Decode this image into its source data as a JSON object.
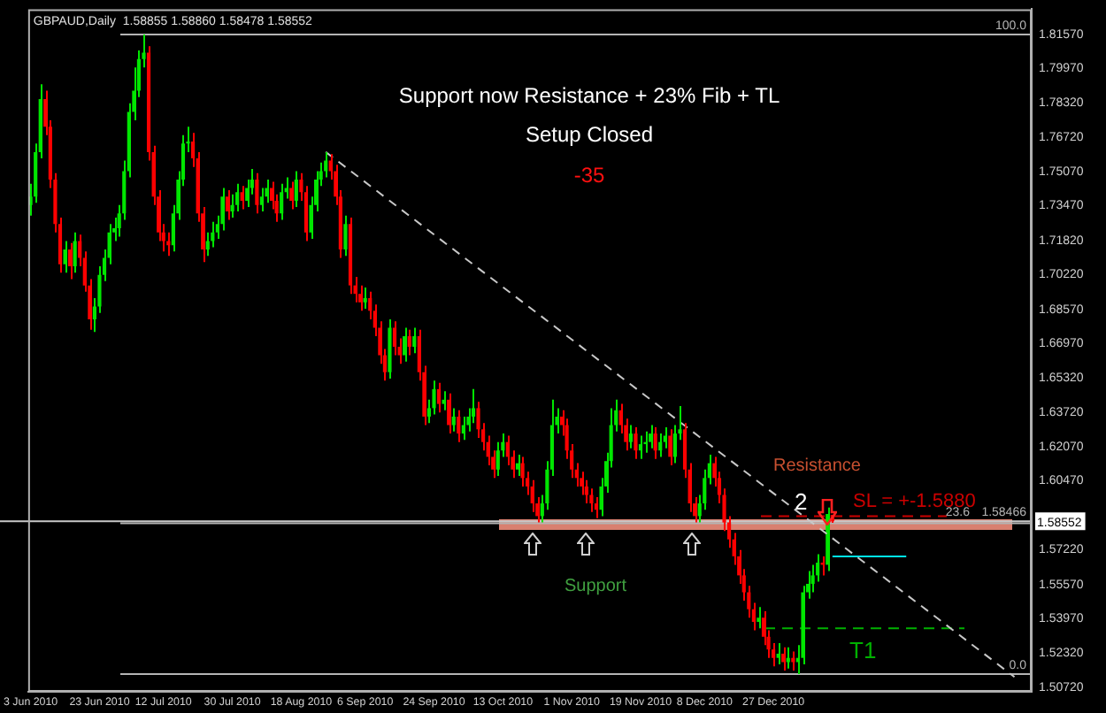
{
  "chart_data": {
    "type": "candlestick",
    "title": "GBPAUD,Daily  1.58855 1.58860 1.58478 1.58552",
    "categories": [
      "3 Jun 2010",
      null,
      null,
      null,
      null,
      null,
      null,
      null,
      null,
      null,
      null,
      null,
      null,
      null,
      "23 Jun 2010",
      null,
      null,
      null,
      null,
      null,
      null,
      null,
      null,
      null,
      null,
      null,
      null,
      "12 Jul 2010",
      null,
      null,
      null,
      null,
      null,
      null,
      null,
      null,
      null,
      null,
      null,
      null,
      null,
      "30 Jul 2010",
      null,
      null,
      null,
      null,
      null,
      null,
      null,
      null,
      null,
      null,
      null,
      null,
      null,
      "18 Aug 2010",
      null,
      null,
      null,
      null,
      null,
      null,
      null,
      null,
      null,
      null,
      null,
      null,
      "6 Sep 2010",
      null,
      null,
      null,
      null,
      null,
      null,
      null,
      null,
      null,
      null,
      null,
      null,
      null,
      "24 Sep 2010",
      null,
      null,
      null,
      null,
      null,
      null,
      null,
      null,
      null,
      null,
      null,
      null,
      null,
      "13 Oct 2010",
      null,
      null,
      null,
      null,
      null,
      null,
      null,
      null,
      null,
      null,
      null,
      null,
      null,
      "1 Nov 2010",
      null,
      null,
      null,
      null,
      null,
      null,
      null,
      null,
      null,
      null,
      null,
      null,
      null,
      "19 Nov 2010",
      null,
      null,
      null,
      null,
      null,
      null,
      null,
      null,
      null,
      null,
      null,
      null,
      "8 Dec 2010",
      null,
      null,
      null,
      null,
      null,
      null,
      null,
      null,
      null,
      null,
      null,
      null,
      null,
      "27 Dec 2010",
      null,
      null,
      null,
      null,
      null,
      null,
      null,
      null,
      null,
      null,
      null,
      null,
      null,
      null,
      null,
      null,
      null,
      null,
      null,
      null,
      null,
      null,
      null,
      null,
      null,
      null,
      null,
      null,
      null,
      null,
      null,
      null,
      null,
      null,
      null,
      null,
      null,
      null,
      null,
      null,
      null,
      null,
      null,
      null,
      null,
      null,
      null,
      null,
      null,
      null,
      null,
      null
    ],
    "ohlc": [
      [
        1.735,
        1.745,
        1.73,
        1.739
      ],
      [
        1.739,
        1.764,
        1.736,
        1.76
      ],
      [
        1.76,
        1.792,
        1.757,
        1.785
      ],
      [
        1.785,
        1.789,
        1.768,
        1.772
      ],
      [
        1.772,
        1.775,
        1.743,
        1.747
      ],
      [
        1.747,
        1.75,
        1.722,
        1.726
      ],
      [
        1.726,
        1.729,
        1.703,
        1.707
      ],
      [
        1.707,
        1.718,
        1.703,
        1.714
      ],
      [
        1.714,
        1.717,
        1.7,
        1.706
      ],
      [
        1.706,
        1.722,
        1.703,
        1.718
      ],
      [
        1.718,
        1.721,
        1.706,
        1.71
      ],
      [
        1.71,
        1.713,
        1.694,
        1.697
      ],
      [
        1.697,
        1.7,
        1.676,
        1.681
      ],
      [
        1.681,
        1.691,
        1.675,
        1.687
      ],
      [
        1.687,
        1.706,
        1.684,
        1.702
      ],
      [
        1.702,
        1.714,
        1.699,
        1.71
      ],
      [
        1.71,
        1.726,
        1.707,
        1.722
      ],
      [
        1.722,
        1.729,
        1.718,
        1.724
      ],
      [
        1.724,
        1.735,
        1.72,
        1.731
      ],
      [
        1.731,
        1.756,
        1.728,
        1.751
      ],
      [
        1.751,
        1.783,
        1.748,
        1.779
      ],
      [
        1.779,
        1.8,
        1.775,
        1.789
      ],
      [
        1.789,
        1.808,
        1.786,
        1.804
      ],
      [
        1.804,
        1.8155,
        1.8,
        1.807
      ],
      [
        1.807,
        1.81,
        1.756,
        1.76
      ],
      [
        1.76,
        1.763,
        1.735,
        1.739
      ],
      [
        1.739,
        1.742,
        1.718,
        1.722
      ],
      [
        1.722,
        1.726,
        1.713,
        1.718
      ],
      [
        1.718,
        1.722,
        1.711,
        1.716
      ],
      [
        1.716,
        1.735,
        1.713,
        1.731
      ],
      [
        1.731,
        1.751,
        1.728,
        1.747
      ],
      [
        1.747,
        1.768,
        1.744,
        1.764
      ],
      [
        1.764,
        1.772,
        1.76,
        1.765
      ],
      [
        1.765,
        1.769,
        1.753,
        1.757
      ],
      [
        1.757,
        1.76,
        1.727,
        1.731
      ],
      [
        1.731,
        1.734,
        1.708,
        1.714
      ],
      [
        1.714,
        1.722,
        1.711,
        1.718
      ],
      [
        1.718,
        1.727,
        1.715,
        1.722
      ],
      [
        1.722,
        1.73,
        1.719,
        1.726
      ],
      [
        1.726,
        1.743,
        1.723,
        1.739
      ],
      [
        1.739,
        1.742,
        1.728,
        1.732
      ],
      [
        1.732,
        1.74,
        1.729,
        1.735
      ],
      [
        1.735,
        1.745,
        1.732,
        1.741
      ],
      [
        1.741,
        1.744,
        1.733,
        1.737
      ],
      [
        1.737,
        1.747,
        1.734,
        1.743
      ],
      [
        1.743,
        1.752,
        1.74,
        1.747
      ],
      [
        1.747,
        1.75,
        1.731,
        1.735
      ],
      [
        1.735,
        1.743,
        1.732,
        1.739
      ],
      [
        1.739,
        1.747,
        1.736,
        1.743
      ],
      [
        1.743,
        1.746,
        1.733,
        1.737
      ],
      [
        1.737,
        1.74,
        1.727,
        1.731
      ],
      [
        1.731,
        1.745,
        1.728,
        1.741
      ],
      [
        1.741,
        1.748,
        1.738,
        1.743
      ],
      [
        1.743,
        1.746,
        1.733,
        1.737
      ],
      [
        1.737,
        1.751,
        1.734,
        1.747
      ],
      [
        1.747,
        1.75,
        1.737,
        1.741
      ],
      [
        1.741,
        1.744,
        1.718,
        1.722
      ],
      [
        1.722,
        1.739,
        1.719,
        1.735
      ],
      [
        1.735,
        1.751,
        1.732,
        1.747
      ],
      [
        1.747,
        1.755,
        1.744,
        1.751
      ],
      [
        1.751,
        1.76,
        1.748,
        1.756
      ],
      [
        1.756,
        1.759,
        1.747,
        1.751
      ],
      [
        1.751,
        1.754,
        1.735,
        1.739
      ],
      [
        1.739,
        1.742,
        1.71,
        1.714
      ],
      [
        1.714,
        1.73,
        1.711,
        1.726
      ],
      [
        1.726,
        1.729,
        1.693,
        1.697
      ],
      [
        1.697,
        1.701,
        1.689,
        1.693
      ],
      [
        1.693,
        1.697,
        1.685,
        1.689
      ],
      [
        1.689,
        1.696,
        1.686,
        1.691
      ],
      [
        1.691,
        1.694,
        1.681,
        1.685
      ],
      [
        1.685,
        1.688,
        1.673,
        1.677
      ],
      [
        1.677,
        1.68,
        1.66,
        1.664
      ],
      [
        1.664,
        1.667,
        1.652,
        1.656
      ],
      [
        1.656,
        1.681,
        1.653,
        1.677
      ],
      [
        1.677,
        1.68,
        1.664,
        1.668
      ],
      [
        1.668,
        1.672,
        1.66,
        1.664
      ],
      [
        1.664,
        1.677,
        1.661,
        1.673
      ],
      [
        1.673,
        1.676,
        1.664,
        1.668
      ],
      [
        1.668,
        1.677,
        1.665,
        1.673
      ],
      [
        1.673,
        1.676,
        1.652,
        1.656
      ],
      [
        1.656,
        1.659,
        1.631,
        1.635
      ],
      [
        1.635,
        1.643,
        1.632,
        1.639
      ],
      [
        1.639,
        1.652,
        1.636,
        1.648
      ],
      [
        1.648,
        1.651,
        1.637,
        1.641
      ],
      [
        1.641,
        1.647,
        1.638,
        1.643
      ],
      [
        1.643,
        1.646,
        1.627,
        1.631
      ],
      [
        1.631,
        1.639,
        1.628,
        1.635
      ],
      [
        1.635,
        1.638,
        1.623,
        1.627
      ],
      [
        1.627,
        1.635,
        1.624,
        1.631
      ],
      [
        1.631,
        1.639,
        1.628,
        1.635
      ],
      [
        1.635,
        1.648,
        1.632,
        1.639
      ],
      [
        1.639,
        1.642,
        1.625,
        1.629
      ],
      [
        1.629,
        1.632,
        1.619,
        1.623
      ],
      [
        1.623,
        1.626,
        1.612,
        1.616
      ],
      [
        1.616,
        1.619,
        1.606,
        1.61
      ],
      [
        1.61,
        1.623,
        1.607,
        1.619
      ],
      [
        1.619,
        1.627,
        1.616,
        1.623
      ],
      [
        1.623,
        1.626,
        1.612,
        1.616
      ],
      [
        1.616,
        1.619,
        1.606,
        1.61
      ],
      [
        1.61,
        1.617,
        1.607,
        1.613
      ],
      [
        1.613,
        1.616,
        1.602,
        1.606
      ],
      [
        1.606,
        1.609,
        1.598,
        1.602
      ],
      [
        1.602,
        1.605,
        1.59,
        1.594
      ],
      [
        1.594,
        1.597,
        1.585,
        1.588
      ],
      [
        1.588,
        1.598,
        1.585,
        1.594
      ],
      [
        1.594,
        1.614,
        1.591,
        1.61
      ],
      [
        1.61,
        1.643,
        1.607,
        1.631
      ],
      [
        1.631,
        1.639,
        1.627,
        1.635
      ],
      [
        1.635,
        1.638,
        1.626,
        1.631
      ],
      [
        1.631,
        1.634,
        1.615,
        1.619
      ],
      [
        1.619,
        1.622,
        1.606,
        1.61
      ],
      [
        1.61,
        1.613,
        1.602,
        1.606
      ],
      [
        1.606,
        1.609,
        1.598,
        1.602
      ],
      [
        1.602,
        1.605,
        1.594,
        1.598
      ],
      [
        1.598,
        1.601,
        1.59,
        1.594
      ],
      [
        1.594,
        1.597,
        1.587,
        1.591
      ],
      [
        1.591,
        1.606,
        1.588,
        1.602
      ],
      [
        1.602,
        1.618,
        1.599,
        1.614
      ],
      [
        1.614,
        1.639,
        1.611,
        1.631
      ],
      [
        1.631,
        1.643,
        1.628,
        1.638
      ],
      [
        1.638,
        1.641,
        1.627,
        1.631
      ],
      [
        1.631,
        1.634,
        1.619,
        1.623
      ],
      [
        1.623,
        1.631,
        1.62,
        1.627
      ],
      [
        1.627,
        1.63,
        1.615,
        1.619
      ],
      [
        1.619,
        1.626,
        1.615,
        1.622
      ],
      [
        1.622,
        1.628,
        1.618,
        1.623
      ],
      [
        1.623,
        1.631,
        1.62,
        1.627
      ],
      [
        1.627,
        1.63,
        1.615,
        1.619
      ],
      [
        1.619,
        1.627,
        1.616,
        1.623
      ],
      [
        1.623,
        1.63,
        1.62,
        1.626
      ],
      [
        1.626,
        1.629,
        1.612,
        1.616
      ],
      [
        1.616,
        1.631,
        1.613,
        1.627
      ],
      [
        1.627,
        1.64,
        1.624,
        1.629
      ],
      [
        1.629,
        1.632,
        1.606,
        1.61
      ],
      [
        1.61,
        1.613,
        1.59,
        1.594
      ],
      [
        1.594,
        1.597,
        1.585,
        1.588
      ],
      [
        1.588,
        1.598,
        1.585,
        1.594
      ],
      [
        1.594,
        1.61,
        1.591,
        1.606
      ],
      [
        1.606,
        1.617,
        1.603,
        1.613
      ],
      [
        1.613,
        1.616,
        1.602,
        1.606
      ],
      [
        1.606,
        1.609,
        1.594,
        1.598
      ],
      [
        1.598,
        1.601,
        1.581,
        1.585
      ],
      [
        1.585,
        1.588,
        1.573,
        1.577
      ],
      [
        1.577,
        1.58,
        1.565,
        1.569
      ],
      [
        1.569,
        1.572,
        1.556,
        1.56
      ],
      [
        1.56,
        1.563,
        1.548,
        1.552
      ],
      [
        1.552,
        1.555,
        1.54,
        1.544
      ],
      [
        1.544,
        1.547,
        1.534,
        1.538
      ],
      [
        1.538,
        1.545,
        1.535,
        1.54
      ],
      [
        1.54,
        1.543,
        1.527,
        1.531
      ],
      [
        1.531,
        1.534,
        1.521,
        1.525
      ],
      [
        1.525,
        1.528,
        1.517,
        1.521
      ],
      [
        1.521,
        1.528,
        1.518,
        1.523
      ],
      [
        1.523,
        1.526,
        1.515,
        1.519
      ],
      [
        1.519,
        1.526,
        1.516,
        1.521
      ],
      [
        1.521,
        1.524,
        1.515,
        1.519
      ],
      [
        1.519,
        1.527,
        1.5134,
        1.521
      ],
      [
        1.521,
        1.555,
        1.518,
        1.552
      ],
      [
        1.552,
        1.562,
        1.549,
        1.556
      ],
      [
        1.556,
        1.565,
        1.552,
        1.56
      ],
      [
        1.56,
        1.57,
        1.557,
        1.566
      ],
      [
        1.566,
        1.569,
        1.56,
        1.565
      ],
      [
        1.565,
        1.592,
        1.562,
        1.589
      ],
      [
        1.58855,
        1.5886,
        1.58478,
        1.58552
      ],
      null,
      null,
      null,
      null,
      null,
      null,
      null,
      null,
      null,
      null,
      null,
      null,
      null,
      null,
      null,
      null,
      null,
      null,
      null,
      null,
      null,
      null,
      null,
      null,
      null,
      null,
      null,
      null,
      null,
      null,
      null,
      null,
      null,
      null,
      null,
      null,
      null,
      null,
      null,
      null
    ],
    "series": [
      {
        "type": "line",
        "color": "#c8c8c8",
        "line_style": "dashed",
        "values": [
          null,
          null,
          null,
          null,
          null,
          null,
          null,
          null,
          null,
          null,
          null,
          null,
          null,
          null,
          null,
          null,
          null,
          null,
          null,
          null,
          null,
          null,
          null,
          null,
          null,
          null,
          null,
          null,
          null,
          null,
          null,
          null,
          null,
          null,
          null,
          null,
          null,
          null,
          null,
          null,
          null,
          null,
          null,
          null,
          null,
          null,
          null,
          null,
          null,
          null,
          null,
          null,
          null,
          null,
          null,
          null,
          null,
          null,
          null,
          null,
          1.76,
          null,
          null,
          null,
          null,
          null,
          null,
          null,
          null,
          null,
          null,
          null,
          null,
          null,
          null,
          null,
          null,
          null,
          null,
          null,
          null,
          null,
          null,
          null,
          null,
          null,
          null,
          null,
          null,
          null,
          null,
          null,
          null,
          null,
          null,
          null,
          null,
          null,
          null,
          null,
          null,
          null,
          null,
          null,
          null,
          null,
          null,
          null,
          null,
          null,
          null,
          null,
          null,
          null,
          null,
          null,
          null,
          null,
          null,
          null,
          null,
          null,
          null,
          null,
          null,
          null,
          null,
          null,
          null,
          null,
          null,
          null,
          null,
          null,
          null,
          null,
          null,
          null,
          null,
          null,
          null,
          null,
          null,
          null,
          null,
          null,
          null,
          null,
          null,
          null,
          null,
          null,
          null,
          null,
          null,
          null,
          null,
          null,
          null,
          null,
          null,
          null,
          null,
          null,
          null,
          null,
          null,
          null,
          null,
          null,
          null,
          null,
          null,
          null,
          null,
          null,
          null,
          null,
          null,
          null,
          null,
          null,
          null,
          null,
          null,
          null,
          null,
          null,
          null,
          null,
          null,
          null,
          null,
          null,
          null,
          null,
          null,
          null,
          null,
          null,
          1.512,
          null,
          null,
          null
        ]
      },
      {
        "type": "line",
        "color": "#00e8f0",
        "line_style": "solid",
        "values": [
          null,
          null,
          null,
          null,
          null,
          null,
          null,
          null,
          null,
          null,
          null,
          null,
          null,
          null,
          null,
          null,
          null,
          null,
          null,
          null,
          null,
          null,
          null,
          null,
          null,
          null,
          null,
          null,
          null,
          null,
          null,
          null,
          null,
          null,
          null,
          null,
          null,
          null,
          null,
          null,
          null,
          null,
          null,
          null,
          null,
          null,
          null,
          null,
          null,
          null,
          null,
          null,
          null,
          null,
          null,
          null,
          null,
          null,
          null,
          null,
          null,
          null,
          null,
          null,
          null,
          null,
          null,
          null,
          null,
          null,
          null,
          null,
          null,
          null,
          null,
          null,
          null,
          null,
          null,
          null,
          null,
          null,
          null,
          null,
          null,
          null,
          null,
          null,
          null,
          null,
          null,
          null,
          null,
          null,
          null,
          null,
          null,
          null,
          null,
          null,
          null,
          null,
          null,
          null,
          null,
          null,
          null,
          null,
          null,
          null,
          null,
          null,
          null,
          null,
          null,
          null,
          null,
          null,
          null,
          null,
          null,
          null,
          null,
          null,
          null,
          null,
          null,
          null,
          null,
          null,
          null,
          null,
          null,
          null,
          null,
          null,
          null,
          null,
          null,
          null,
          null,
          null,
          null,
          null,
          null,
          null,
          null,
          null,
          null,
          null,
          null,
          null,
          null,
          null,
          null,
          null,
          null,
          null,
          null,
          null,
          null,
          null,
          null,
          1.569,
          null,
          null,
          null,
          null,
          null,
          null,
          null,
          null,
          null,
          null,
          null,
          null,
          null,
          null,
          1.569,
          null,
          null,
          null,
          null,
          null,
          null,
          null,
          null,
          null,
          null,
          null,
          null,
          null,
          null,
          null,
          null,
          null,
          null,
          null,
          null,
          null,
          null,
          null,
          null,
          null
        ]
      }
    ],
    "ylim": [
      1.505,
      1.8275
    ],
    "yticks": [
      {
        "value": 1.5072,
        "label": "1.50720"
      },
      {
        "value": 1.5232,
        "label": "1.52320"
      },
      {
        "value": 1.5397,
        "label": "1.53970"
      },
      {
        "value": 1.5557,
        "label": "1.55570"
      },
      {
        "value": 1.5722,
        "label": "1.57220"
      },
      {
        "value": 1.6047,
        "label": "1.60470"
      },
      {
        "value": 1.6207,
        "label": "1.62070"
      },
      {
        "value": 1.6372,
        "label": "1.63720"
      },
      {
        "value": 1.6532,
        "label": "1.65320"
      },
      {
        "value": 1.6697,
        "label": "1.66970"
      },
      {
        "value": 1.6857,
        "label": "1.68570"
      },
      {
        "value": 1.7022,
        "label": "1.70220"
      },
      {
        "value": 1.7182,
        "label": "1.71820"
      },
      {
        "value": 1.7347,
        "label": "1.73470"
      },
      {
        "value": 1.7507,
        "label": "1.75070"
      },
      {
        "value": 1.7672,
        "label": "1.76720"
      },
      {
        "value": 1.7832,
        "label": "1.78320"
      },
      {
        "value": 1.7997,
        "label": "1.79970"
      },
      {
        "value": 1.8157,
        "label": "1.81570"
      }
    ],
    "ref_lines": [
      {
        "axis": "y",
        "value": 1.8155,
        "color": "#b4b4b4"
      },
      {
        "axis": "y",
        "value": 1.58466,
        "label": "1.58466",
        "color": "#b4b4b4"
      },
      {
        "axis": "y",
        "value": 1.5134,
        "color": "#b4b4b4"
      },
      {
        "axis": "y",
        "value": 1.58552,
        "label": "1.58552",
        "color": "#c8c8c8"
      },
      {
        "axis": "y",
        "value": 1.588,
        "label": "SL = +-1.5880",
        "color": "#cc0000",
        "line_style": "dashed"
      },
      {
        "axis": "y",
        "value": 1.535,
        "label": "T1",
        "color": "#00b000",
        "line_style": "dashed"
      }
    ],
    "bands": [
      {
        "axis": "y",
        "from": 1.5815,
        "to": 1.5865,
        "color": "#d98070"
      }
    ],
    "annotations": [
      "Support now Resistance + 23% Fib + TL",
      "Setup Closed",
      "-35",
      "Resistance",
      "2",
      "Support",
      {
        "text": "100.0",
        "y": 1.8155
      },
      {
        "text": "23.6",
        "y": 1.58466
      },
      {
        "text": "0.0",
        "y": 1.5134
      }
    ]
  }
}
